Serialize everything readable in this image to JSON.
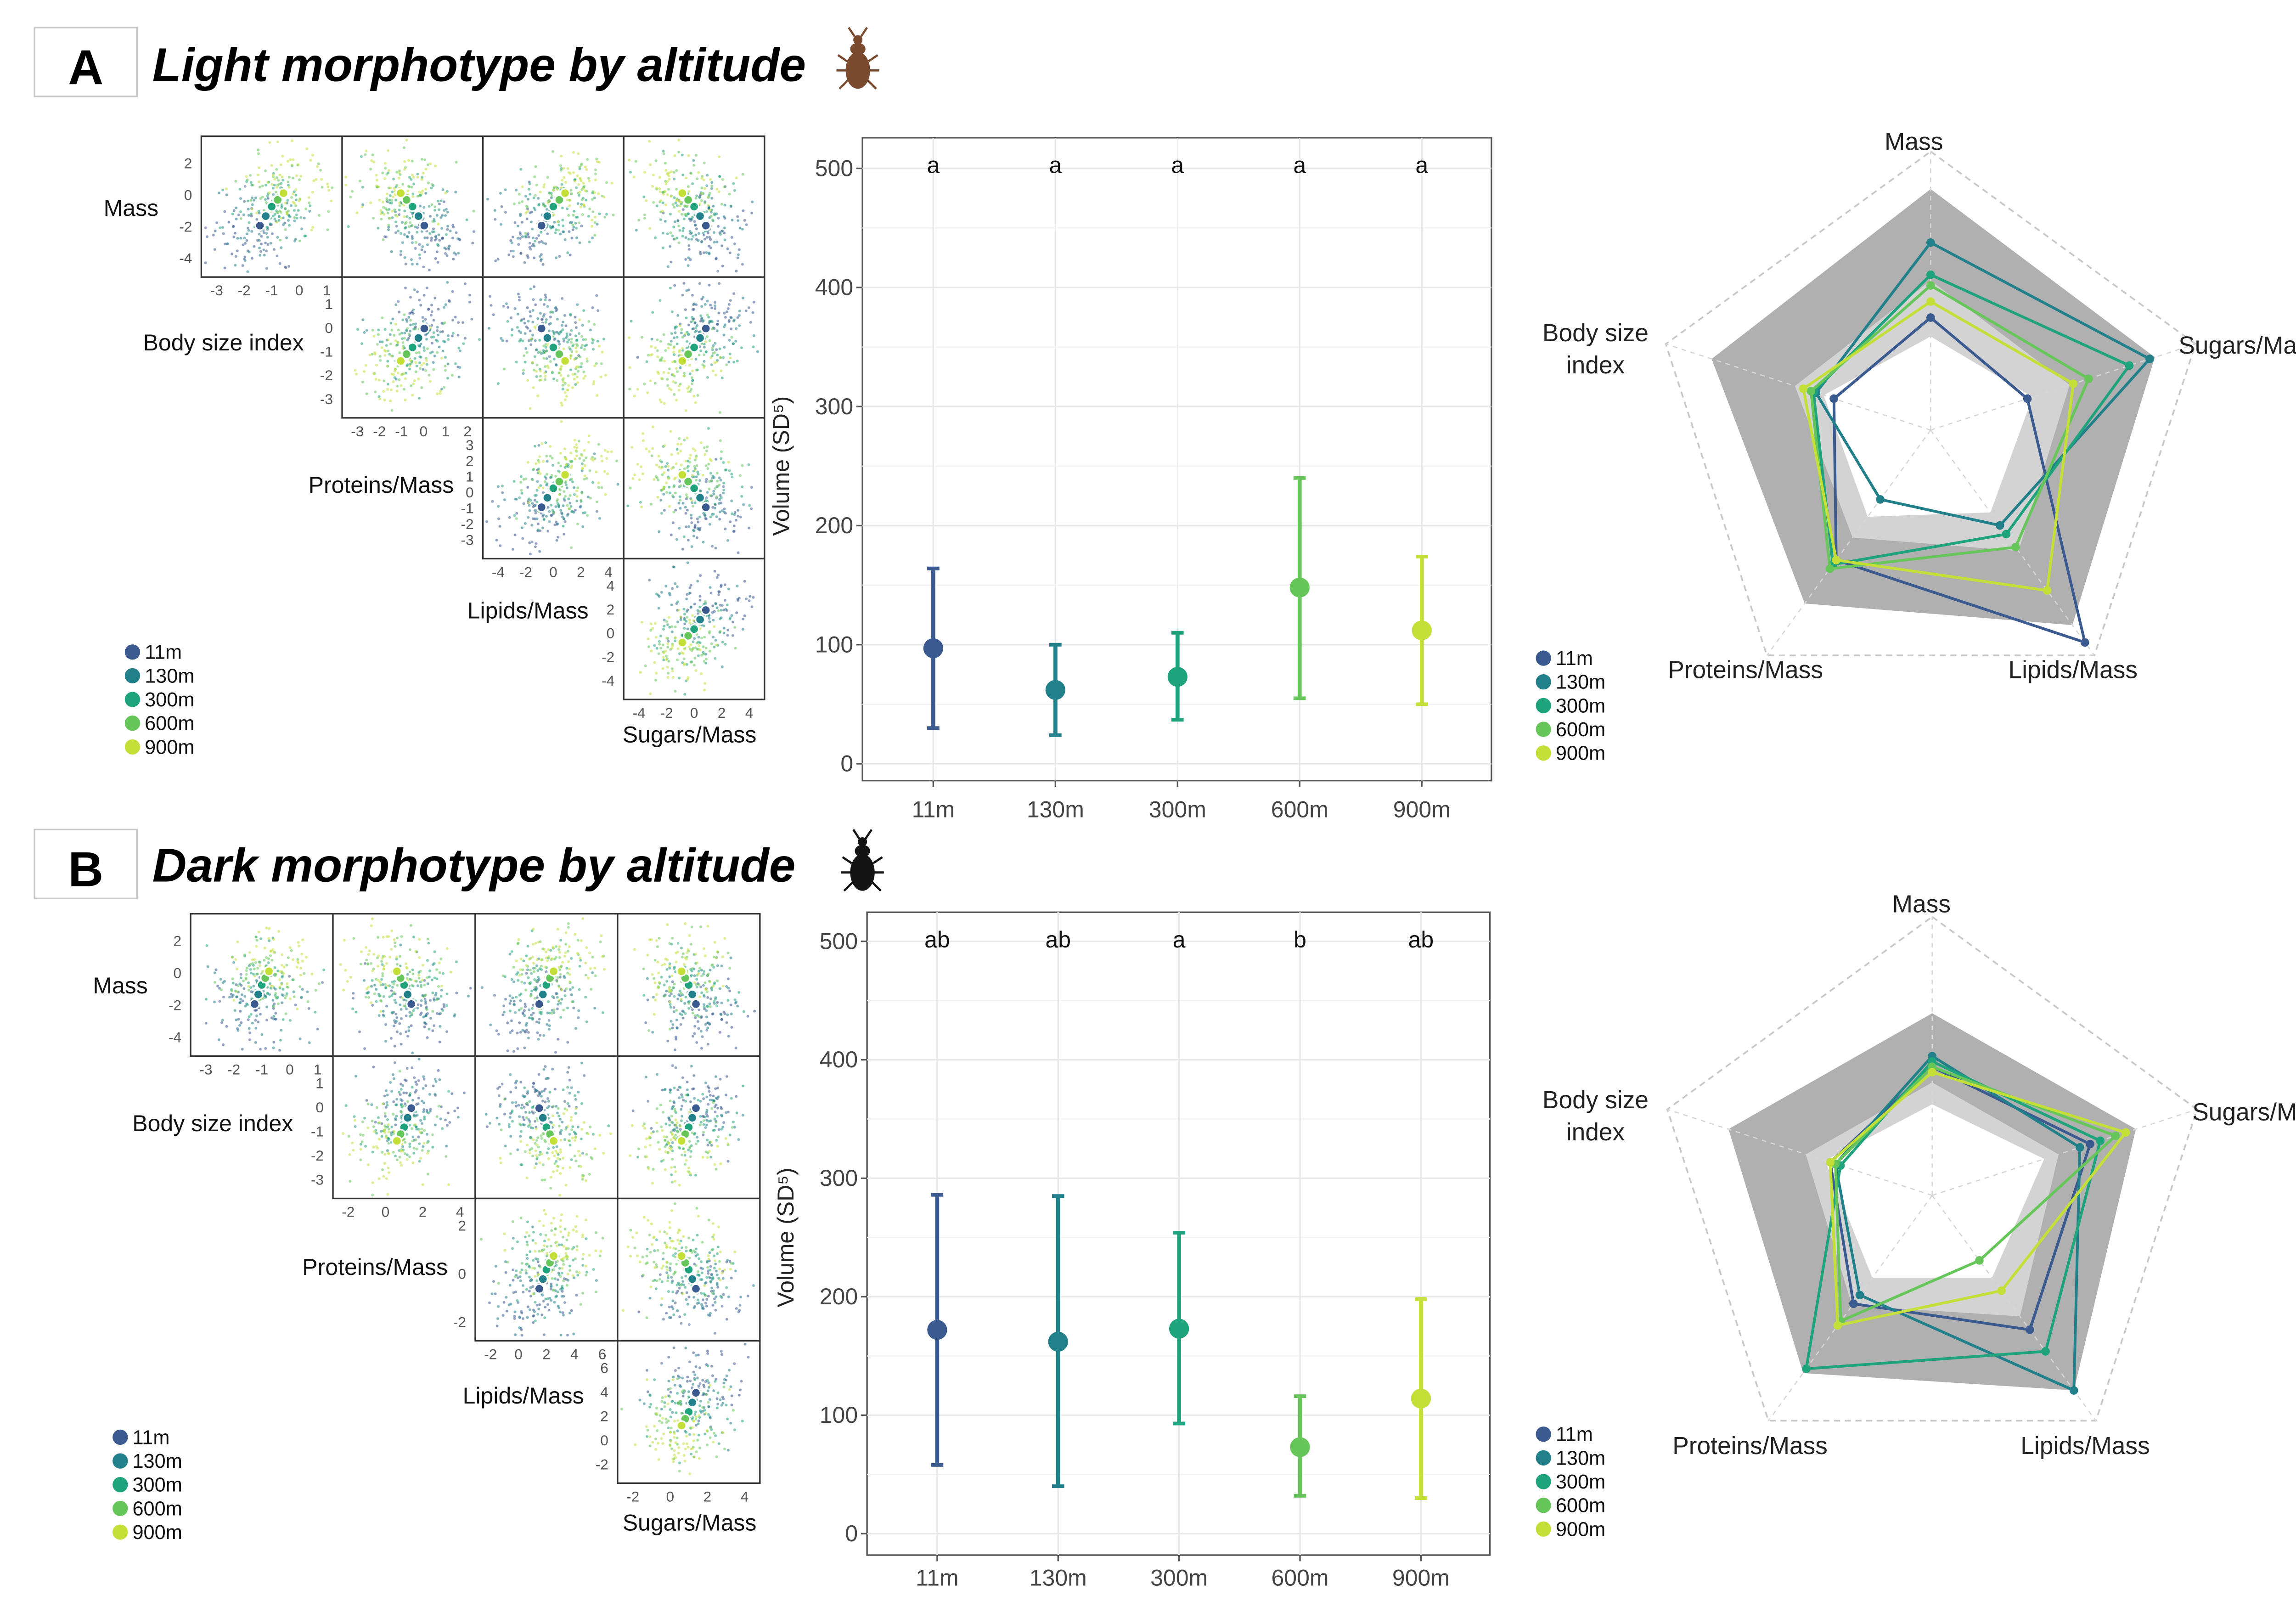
{
  "colors": {
    "c11m": "#3b5a8f",
    "c130m": "#22808a",
    "c300m": "#1fa37c",
    "c600m": "#66c65a",
    "c900m": "#c4e038",
    "grid": "#e8e8e8",
    "frame": "#555555",
    "radar_dark": "#b0b0b0",
    "radar_light": "#d3d3d3"
  },
  "panels": [
    {
      "letter": "A",
      "title": "Light morphotype by altitude",
      "beetle_icon": "light-beetle-icon",
      "beetle_color": "#7a4a2e",
      "pairs": {
        "vars": [
          "Mass",
          "Body size index",
          "Proteins/Mass",
          "Lipids/Mass",
          "Sugars/Mass"
        ],
        "axes": [
          {
            "ticks": [
              "2",
              "0",
              "-2",
              "-4"
            ]
          },
          {
            "ticks": [
              "1",
              "0",
              "-1",
              "-2",
              "-3"
            ]
          },
          {
            "ticks": [
              "3",
              "2",
              "1",
              "0",
              "-1",
              "-2",
              "-3"
            ]
          },
          {
            "ticks": [
              "4",
              "2",
              "0",
              "-2",
              "-4"
            ]
          }
        ],
        "xaxes": [
          {
            "ticks": [
              "-3",
              "-2",
              "-1",
              "0",
              "1"
            ]
          },
          {
            "ticks": [
              "-3",
              "-2",
              "-1",
              "0",
              "1",
              "2"
            ]
          },
          {
            "ticks": [
              "-4",
              "-2",
              "0",
              "2",
              "4"
            ]
          },
          {
            "ticks": [
              "-4",
              "-2",
              "0",
              "2",
              "4"
            ]
          }
        ]
      },
      "legend": [
        "11m",
        "130m",
        "300m",
        "600m",
        "900m"
      ],
      "chart_data": {
        "type": "scatter",
        "title": "",
        "xlabel": "",
        "ylabel": "Volume (SD⁵)",
        "ylim": [
          0,
          500
        ],
        "yticks": [
          0,
          100,
          200,
          300,
          400,
          500
        ],
        "categories": [
          "11m",
          "130m",
          "300m",
          "600m",
          "900m"
        ],
        "values": [
          97,
          62,
          73,
          148,
          112
        ],
        "lower": [
          30,
          24,
          37,
          55,
          50
        ],
        "upper": [
          164,
          100,
          110,
          240,
          174
        ],
        "letters": [
          "a",
          "a",
          "a",
          "a",
          "a"
        ]
      },
      "radar": {
        "axes": [
          "Mass",
          "Sugars/Mass",
          "Lipids/Mass",
          "Proteins/Mass",
          "Body size index"
        ],
        "outer": [
          0.9,
          0.88,
          0.9,
          0.8,
          0.86
        ],
        "inner": [
          0.35,
          0.4,
          0.38,
          0.4,
          0.42
        ],
        "series": [
          {
            "name": "11m",
            "values": [
              0.42,
              0.38,
              0.98,
              0.6,
              0.38
            ]
          },
          {
            "name": "130m",
            "values": [
              0.7,
              0.86,
              0.44,
              0.32,
              0.45
            ]
          },
          {
            "name": "300m",
            "values": [
              0.58,
              0.78,
              0.48,
              0.62,
              0.46
            ]
          },
          {
            "name": "600m",
            "values": [
              0.54,
              0.62,
              0.54,
              0.64,
              0.47
            ]
          },
          {
            "name": "900m",
            "values": [
              0.48,
              0.56,
              0.74,
              0.6,
              0.5
            ]
          }
        ]
      }
    },
    {
      "letter": "B",
      "title": "Dark morphotype by altitude",
      "beetle_icon": "dark-beetle-icon",
      "beetle_color": "#141414",
      "pairs": {
        "vars": [
          "Mass",
          "Body size index",
          "Proteins/Mass",
          "Lipids/Mass",
          "Sugars/Mass"
        ],
        "axes": [
          {
            "ticks": [
              "2",
              "0",
              "-2",
              "-4"
            ]
          },
          {
            "ticks": [
              "1",
              "0",
              "-1",
              "-2",
              "-3"
            ]
          },
          {
            "ticks": [
              "2",
              "0",
              "-2"
            ]
          },
          {
            "ticks": [
              "6",
              "4",
              "2",
              "0",
              "-2"
            ]
          }
        ],
        "xaxes": [
          {
            "ticks": [
              "-3",
              "-2",
              "-1",
              "0",
              "1"
            ]
          },
          {
            "ticks": [
              "-2",
              "0",
              "2",
              "4"
            ]
          },
          {
            "ticks": [
              "-2",
              "0",
              "2",
              "4",
              "6"
            ]
          },
          {
            "ticks": [
              "-2",
              "0",
              "2",
              "4"
            ]
          }
        ]
      },
      "legend": [
        "11m",
        "130m",
        "300m",
        "600m",
        "900m"
      ],
      "chart_data": {
        "type": "scatter",
        "title": "",
        "xlabel": "",
        "ylabel": "Volume (SD⁵)",
        "ylim": [
          0,
          500
        ],
        "yticks": [
          0,
          100,
          200,
          300,
          400,
          500
        ],
        "categories": [
          "11m",
          "130m",
          "300m",
          "600m",
          "900m"
        ],
        "values": [
          172,
          162,
          173,
          73,
          114
        ],
        "lower": [
          58,
          40,
          93,
          32,
          30
        ],
        "upper": [
          286,
          285,
          254,
          116,
          198
        ],
        "letters": [
          "ab",
          "ab",
          "a",
          "b",
          "ab"
        ]
      },
      "radar": {
        "axes": [
          "Mass",
          "Sugars/Mass",
          "Lipids/Mass",
          "Proteins/Mass",
          "Body size index"
        ],
        "outer": [
          0.68,
          0.8,
          0.9,
          0.82,
          0.8
        ],
        "inner": [
          0.34,
          0.44,
          0.38,
          0.38,
          0.42
        ],
        "series": [
          {
            "name": "11m",
            "values": [
              0.48,
              0.62,
              0.62,
              0.5,
              0.4
            ]
          },
          {
            "name": "130m",
            "values": [
              0.52,
              0.58,
              0.9,
              0.46,
              0.38
            ]
          },
          {
            "name": "300m",
            "values": [
              0.5,
              0.66,
              0.72,
              0.8,
              0.36
            ]
          },
          {
            "name": "600m",
            "values": [
              0.48,
              0.72,
              0.3,
              0.58,
              0.38
            ]
          },
          {
            "name": "900m",
            "values": [
              0.46,
              0.76,
              0.44,
              0.6,
              0.4
            ]
          }
        ]
      }
    }
  ]
}
